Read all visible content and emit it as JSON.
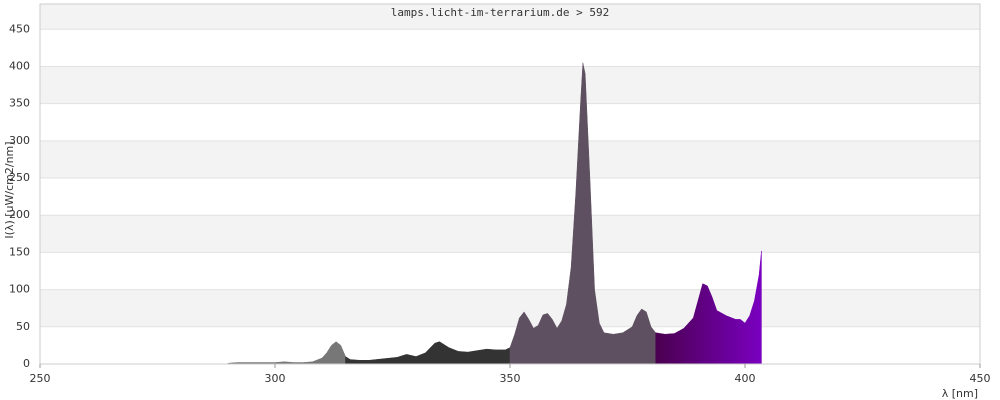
{
  "chart_data": {
    "type": "area",
    "title": "lamps.licht-im-terrarium.de > 592",
    "x_label": "λ [nm]",
    "y_label": "I(λ) [uW/cm2/nm]",
    "xlim": [
      250,
      450
    ],
    "xticks": [
      250,
      300,
      350,
      400,
      450
    ],
    "ylim": [
      0,
      484
    ],
    "yticks": [
      0,
      50,
      100,
      150,
      200,
      250,
      300,
      350,
      400,
      450
    ],
    "grid": true,
    "bands": true,
    "series": [
      {
        "color": "#777777",
        "x": [
          290,
          292,
          295,
          298,
          300,
          302,
          304,
          306,
          308,
          310,
          311,
          312,
          313,
          314,
          315
        ],
        "values": [
          1,
          2,
          2,
          2,
          2,
          3,
          2,
          2,
          3,
          8,
          15,
          25,
          30,
          25,
          10
        ]
      },
      {
        "color": "#333333",
        "x": [
          315,
          316,
          318,
          320,
          323,
          326,
          328,
          330,
          332,
          334,
          335,
          337,
          339,
          341,
          343,
          345,
          347,
          349,
          350
        ],
        "values": [
          10,
          6,
          5,
          5,
          7,
          9,
          13,
          10,
          15,
          28,
          30,
          22,
          17,
          16,
          18,
          20,
          19,
          19,
          22
        ]
      },
      {
        "color": "#5e5060",
        "x": [
          350,
          351,
          352,
          353,
          354,
          355,
          356,
          357,
          358,
          359,
          360,
          361,
          362,
          363,
          364,
          365,
          365.5,
          366,
          367,
          368,
          369,
          370,
          372,
          374,
          376,
          377,
          378,
          379,
          380,
          381
        ],
        "values": [
          22,
          40,
          62,
          70,
          60,
          48,
          52,
          66,
          68,
          60,
          48,
          58,
          80,
          130,
          230,
          350,
          405,
          390,
          250,
          100,
          55,
          42,
          40,
          42,
          50,
          65,
          74,
          70,
          50,
          42
        ]
      },
      {
        "color": "#6a00a8",
        "gradient": [
          "#4a004f",
          "#7a00c0"
        ],
        "x": [
          381,
          383,
          385,
          387,
          389,
          390,
          391,
          392,
          393,
          394,
          396,
          398,
          399,
          400,
          401,
          402,
          403,
          403.5
        ],
        "values": [
          42,
          40,
          41,
          48,
          62,
          85,
          108,
          105,
          90,
          72,
          65,
          60,
          60,
          55,
          65,
          85,
          120,
          152
        ]
      }
    ]
  }
}
